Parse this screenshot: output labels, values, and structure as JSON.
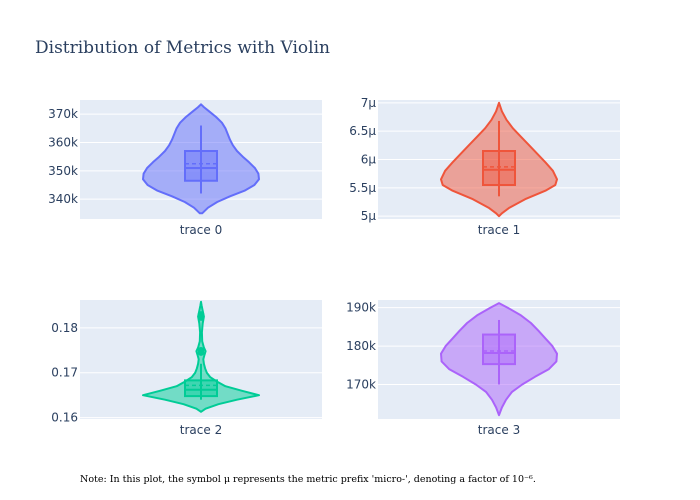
{
  "title": "Distribution of Metrics with Violin",
  "note": "Note: In this plot, the symbol μ represents the metric prefix 'micro-', denoting a factor of 10⁻⁶.",
  "colors": {
    "plot_bg": "#e5ecf6",
    "grid": "#ffffff",
    "text": "#2a3f5f"
  },
  "chart_data": [
    {
      "type": "violin",
      "category": "trace 0",
      "color": "#636efa",
      "ylim": [
        333000,
        375000
      ],
      "ticks": [
        340000,
        350000,
        360000,
        370000
      ],
      "tick_labels": [
        "340k",
        "350k",
        "360k",
        "370k"
      ],
      "box": {
        "q1": 346500,
        "median": 351000,
        "q3": 357000,
        "mean": 352500,
        "whisker_low": 342000,
        "whisker_high": 366000
      },
      "density": [
        [
          335000,
          0.02
        ],
        [
          337000,
          0.12
        ],
        [
          339000,
          0.28
        ],
        [
          341000,
          0.5
        ],
        [
          343000,
          0.75
        ],
        [
          345000,
          0.92
        ],
        [
          347000,
          1.0
        ],
        [
          349000,
          0.99
        ],
        [
          351000,
          0.93
        ],
        [
          353000,
          0.83
        ],
        [
          355000,
          0.72
        ],
        [
          357000,
          0.62
        ],
        [
          359000,
          0.55
        ],
        [
          361000,
          0.5
        ],
        [
          363000,
          0.46
        ],
        [
          365000,
          0.42
        ],
        [
          367000,
          0.36
        ],
        [
          369000,
          0.26
        ],
        [
          371000,
          0.14
        ],
        [
          372500,
          0.05
        ],
        [
          373500,
          0.0
        ]
      ]
    },
    {
      "type": "violin",
      "category": "trace 1",
      "color": "#ef553b",
      "ylim": [
        4.95e-06,
        7.05e-06
      ],
      "ticks": [
        5e-06,
        5.5e-06,
        6e-06,
        6.5e-06,
        7e-06
      ],
      "tick_labels": [
        "5μ",
        "5.5μ",
        "6μ",
        "6.5μ",
        "7μ"
      ],
      "box": {
        "q1": 5.55e-06,
        "median": 5.82e-06,
        "q3": 6.15e-06,
        "mean": 5.87e-06,
        "whisker_low": 5.35e-06,
        "whisker_high": 6.68e-06
      },
      "density": [
        [
          5e-06,
          0.0
        ],
        [
          5.05e-06,
          0.05
        ],
        [
          5.15e-06,
          0.18
        ],
        [
          5.3e-06,
          0.45
        ],
        [
          5.45e-06,
          0.8
        ],
        [
          5.55e-06,
          0.97
        ],
        [
          5.65e-06,
          1.0
        ],
        [
          5.8e-06,
          0.93
        ],
        [
          5.95e-06,
          0.8
        ],
        [
          6.1e-06,
          0.66
        ],
        [
          6.25e-06,
          0.52
        ],
        [
          6.4e-06,
          0.38
        ],
        [
          6.55e-06,
          0.24
        ],
        [
          6.7e-06,
          0.13
        ],
        [
          6.85e-06,
          0.05
        ],
        [
          7e-06,
          0.0
        ]
      ]
    },
    {
      "type": "violin",
      "category": "trace 2",
      "color": "#00cc96",
      "ylim": [
        0.1597,
        0.1862
      ],
      "ticks": [
        0.16,
        0.17,
        0.18
      ],
      "tick_labels": [
        "0.16",
        "0.17",
        "0.18"
      ],
      "box": {
        "q1": 0.1648,
        "median": 0.1662,
        "q3": 0.1683,
        "mean": 0.1672,
        "whisker_low": 0.164,
        "whisker_high": 0.172
      },
      "outliers": [
        0.183,
        0.1823,
        0.175,
        0.1745
      ],
      "density": [
        [
          0.1613,
          0.0
        ],
        [
          0.162,
          0.08
        ],
        [
          0.163,
          0.3
        ],
        [
          0.164,
          0.62
        ],
        [
          0.165,
          1.0
        ],
        [
          0.166,
          0.7
        ],
        [
          0.167,
          0.42
        ],
        [
          0.168,
          0.28
        ],
        [
          0.169,
          0.16
        ],
        [
          0.17,
          0.1
        ],
        [
          0.171,
          0.07
        ],
        [
          0.172,
          0.05
        ],
        [
          0.173,
          0.04
        ],
        [
          0.174,
          0.06
        ],
        [
          0.1748,
          0.08
        ],
        [
          0.1756,
          0.05
        ],
        [
          0.177,
          0.02
        ],
        [
          0.179,
          0.015
        ],
        [
          0.181,
          0.03
        ],
        [
          0.1825,
          0.05
        ],
        [
          0.1838,
          0.03
        ],
        [
          0.185,
          0.01
        ],
        [
          0.1858,
          0.0
        ]
      ]
    },
    {
      "type": "violin",
      "category": "trace 3",
      "color": "#ab63fa",
      "ylim": [
        161000,
        192000
      ],
      "ticks": [
        170000,
        180000,
        190000
      ],
      "tick_labels": [
        "170k",
        "180k",
        "190k"
      ],
      "box": {
        "q1": 175300,
        "median": 178200,
        "q3": 183000,
        "mean": 178700,
        "whisker_low": 170000,
        "whisker_high": 186800
      },
      "density": [
        [
          162000,
          0.0
        ],
        [
          164000,
          0.05
        ],
        [
          166000,
          0.12
        ],
        [
          168000,
          0.22
        ],
        [
          170000,
          0.4
        ],
        [
          172000,
          0.62
        ],
        [
          174000,
          0.86
        ],
        [
          176000,
          0.99
        ],
        [
          178000,
          1.0
        ],
        [
          180000,
          0.92
        ],
        [
          182000,
          0.8
        ],
        [
          184000,
          0.68
        ],
        [
          186000,
          0.55
        ],
        [
          188000,
          0.38
        ],
        [
          190000,
          0.15
        ],
        [
          191200,
          0.0
        ]
      ]
    }
  ]
}
